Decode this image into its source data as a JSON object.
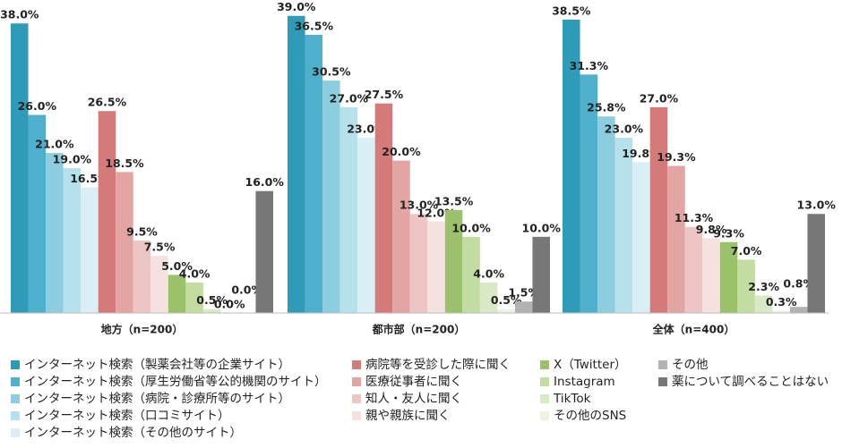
{
  "chart_data": {
    "type": "bar",
    "categories": [
      "地方（n=200）",
      "都市部（n=200）",
      "全体（n=400）"
    ],
    "series": [
      {
        "name": "インターネット検索（製薬会社等の企業サイト）",
        "color": "#2f9bb9",
        "values": [
          38.0,
          39.0,
          38.5
        ],
        "value_labels": [
          "38.0%",
          "39.0%",
          "38.5%"
        ]
      },
      {
        "name": "インターネット検索（厚生労働省等公的機関のサイト）",
        "color": "#4eb0cc",
        "values": [
          26.0,
          36.5,
          31.3
        ],
        "value_labels": [
          "26.0%",
          "36.5%",
          "31.3%"
        ]
      },
      {
        "name": "インターネット検索（病院・診療所等のサイト）",
        "color": "#8dcde0",
        "values": [
          21.0,
          30.5,
          25.8
        ],
        "value_labels": [
          "21.0%",
          "30.5%",
          "25.8%"
        ]
      },
      {
        "name": "インターネット検索（口コミサイト）",
        "color": "#b6e0ec",
        "values": [
          19.0,
          27.0,
          23.0
        ],
        "value_labels": [
          "19.0%",
          "27.0%",
          "23.0%"
        ]
      },
      {
        "name": "インターネット検索（その他のサイト）",
        "color": "#d9eff5",
        "values": [
          16.5,
          23.0,
          19.8
        ],
        "value_labels": [
          "16.5%",
          "23.0%",
          "19.8%"
        ]
      },
      {
        "name": "病院等を受診した際に聞く",
        "color": "#d57a7a",
        "values": [
          26.5,
          27.5,
          27.0
        ],
        "value_labels": [
          "26.5%",
          "27.5%",
          "27.0%"
        ]
      },
      {
        "name": "医療従事者に聞く",
        "color": "#e3a4a4",
        "values": [
          18.5,
          20.0,
          19.3
        ],
        "value_labels": [
          "18.5%",
          "20.0%",
          "19.3%"
        ]
      },
      {
        "name": "知人・友人に聞く",
        "color": "#eec5c5",
        "values": [
          9.5,
          13.0,
          11.3
        ],
        "value_labels": [
          "9.5%",
          "13.0%",
          "11.3%"
        ]
      },
      {
        "name": "親や親族に聞く",
        "color": "#f6e1e1",
        "values": [
          7.5,
          12.0,
          9.8
        ],
        "value_labels": [
          "7.5%",
          "12.0%",
          "9.8%"
        ]
      },
      {
        "name": "X（Twitter）",
        "color": "#9bc26a",
        "values": [
          5.0,
          13.5,
          9.3
        ],
        "value_labels": [
          "5.0%",
          "13.5%",
          "9.3%"
        ]
      },
      {
        "name": "Instagram",
        "color": "#c3dca2",
        "values": [
          4.0,
          10.0,
          7.0
        ],
        "value_labels": [
          "4.0%",
          "10.0%",
          "7.0%"
        ]
      },
      {
        "name": "TikTok",
        "color": "#d9e8c5",
        "values": [
          0.5,
          4.0,
          2.3
        ],
        "value_labels": [
          "0.5%",
          "4.0%",
          "2.3%"
        ]
      },
      {
        "name": "その他のSNS",
        "color": "#ecf3e2",
        "values": [
          0.0,
          0.5,
          0.3
        ],
        "value_labels": [
          "0.0%",
          "0.5%",
          "0.3%"
        ]
      },
      {
        "name": "その他",
        "color": "#b2b2b2",
        "values": [
          0.0,
          1.5,
          0.8
        ],
        "value_labels": [
          "0.0%",
          "1.5%",
          "0.8%"
        ]
      },
      {
        "name": "薬について調べることはない",
        "color": "#777777",
        "values": [
          16.0,
          10.0,
          13.0
        ],
        "value_labels": [
          "16.0%",
          "10.0%",
          "13.0%"
        ]
      }
    ]
  }
}
